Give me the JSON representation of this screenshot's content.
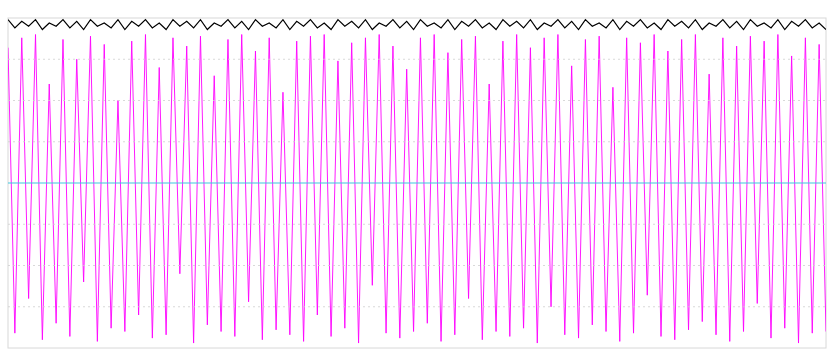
{
  "chart_data": {
    "type": "line",
    "x": [
      0,
      1,
      2,
      3,
      4,
      5,
      6,
      7,
      8,
      9,
      10,
      11,
      12,
      13,
      14,
      15,
      16,
      17,
      18,
      19,
      20,
      21,
      22,
      23,
      24,
      25,
      26,
      27,
      28,
      29,
      30,
      31,
      32,
      33,
      34,
      35,
      36,
      37,
      38,
      39,
      40,
      41,
      42,
      43,
      44,
      45,
      46,
      47,
      48,
      49,
      50,
      51,
      52,
      53,
      54,
      55,
      56,
      57,
      58,
      59,
      60,
      61,
      62,
      63,
      64,
      65,
      66,
      67,
      68,
      69,
      70,
      71,
      72,
      73,
      74,
      75,
      76,
      77,
      78,
      79,
      80,
      81,
      82,
      83,
      84,
      85,
      86,
      87,
      88,
      89,
      90,
      91,
      92,
      93,
      94,
      95,
      96,
      97,
      98,
      99,
      100,
      101,
      102,
      103,
      104,
      105,
      106,
      107,
      108,
      109,
      110,
      111,
      112,
      113,
      114,
      115,
      116,
      117,
      118,
      119
    ],
    "xlim": [
      0,
      119
    ],
    "ylim": [
      -1,
      1
    ],
    "yticks": [
      -0.75,
      -0.5,
      -0.25,
      0,
      0.25,
      0.5,
      0.75
    ],
    "grid": true,
    "tick_labels": false,
    "series": [
      {
        "color": "#ff00ff",
        "values": [
          0.82,
          -0.91,
          0.88,
          -0.7,
          0.9,
          -0.95,
          0.6,
          -0.85,
          0.87,
          -0.93,
          0.75,
          -0.6,
          0.89,
          -0.96,
          0.84,
          -0.88,
          0.5,
          -0.9,
          0.86,
          -0.8,
          0.9,
          -0.94,
          0.7,
          -0.92,
          0.88,
          -0.55,
          0.83,
          -0.97,
          0.89,
          -0.86,
          0.65,
          -0.9,
          0.87,
          -0.93,
          0.9,
          -0.72,
          0.8,
          -0.95,
          0.88,
          -0.89,
          0.55,
          -0.92,
          0.86,
          -0.96,
          0.89,
          -0.8,
          0.9,
          -0.93,
          0.74,
          -0.88,
          0.85,
          -0.97,
          0.88,
          -0.62,
          0.9,
          -0.91,
          0.83,
          -0.94,
          0.69,
          -0.9,
          0.88,
          -0.85,
          0.9,
          -0.96,
          0.79,
          -0.92,
          0.87,
          -0.7,
          0.89,
          -0.95,
          0.6,
          -0.9,
          0.86,
          -0.93,
          0.9,
          -0.88,
          0.82,
          -0.97,
          0.88,
          -0.75,
          0.9,
          -0.92,
          0.71,
          -0.94,
          0.87,
          -0.86,
          0.89,
          -0.9,
          0.58,
          -0.96,
          0.88,
          -0.91,
          0.85,
          -0.68,
          0.9,
          -0.93,
          0.8,
          -0.95,
          0.87,
          -0.89,
          0.9,
          -0.84,
          0.66,
          -0.92,
          0.88,
          -0.96,
          0.83,
          -0.9,
          0.89,
          -0.73,
          0.86,
          -0.94,
          0.9,
          -0.88,
          0.77,
          -0.97,
          0.88,
          -0.91,
          0.84,
          -0.9
        ]
      },
      {
        "color": "#000000",
        "values": [
          0.99,
          0.94,
          0.98,
          0.95,
          0.99,
          0.93,
          0.97,
          0.95,
          0.99,
          0.94,
          0.98,
          0.93,
          0.99,
          0.95,
          0.97,
          0.94,
          0.99,
          0.93,
          0.98,
          0.95,
          0.99,
          0.94,
          0.97,
          0.93,
          0.99,
          0.95,
          0.98,
          0.94,
          0.99,
          0.93,
          0.97,
          0.95,
          0.99,
          0.94,
          0.98,
          0.93,
          0.99,
          0.95,
          0.97,
          0.94,
          0.99,
          0.93,
          0.98,
          0.95,
          0.99,
          0.94,
          0.97,
          0.93,
          0.99,
          0.95,
          0.98,
          0.94,
          0.99,
          0.93,
          0.97,
          0.95,
          0.99,
          0.94,
          0.98,
          0.93,
          0.99,
          0.95,
          0.97,
          0.94,
          0.99,
          0.93,
          0.98,
          0.95,
          0.99,
          0.94,
          0.97,
          0.93,
          0.99,
          0.95,
          0.98,
          0.94,
          0.99,
          0.93,
          0.97,
          0.95,
          0.99,
          0.94,
          0.98,
          0.93,
          0.99,
          0.95,
          0.97,
          0.94,
          0.99,
          0.93,
          0.98,
          0.95,
          0.99,
          0.94,
          0.97,
          0.93,
          0.99,
          0.95,
          0.98,
          0.94,
          0.99,
          0.93,
          0.97,
          0.95,
          0.99,
          0.94,
          0.98,
          0.93,
          0.99,
          0.95,
          0.97,
          0.94,
          0.99,
          0.93,
          0.98,
          0.95,
          0.99,
          0.94,
          0.97,
          0.93
        ]
      }
    ]
  }
}
